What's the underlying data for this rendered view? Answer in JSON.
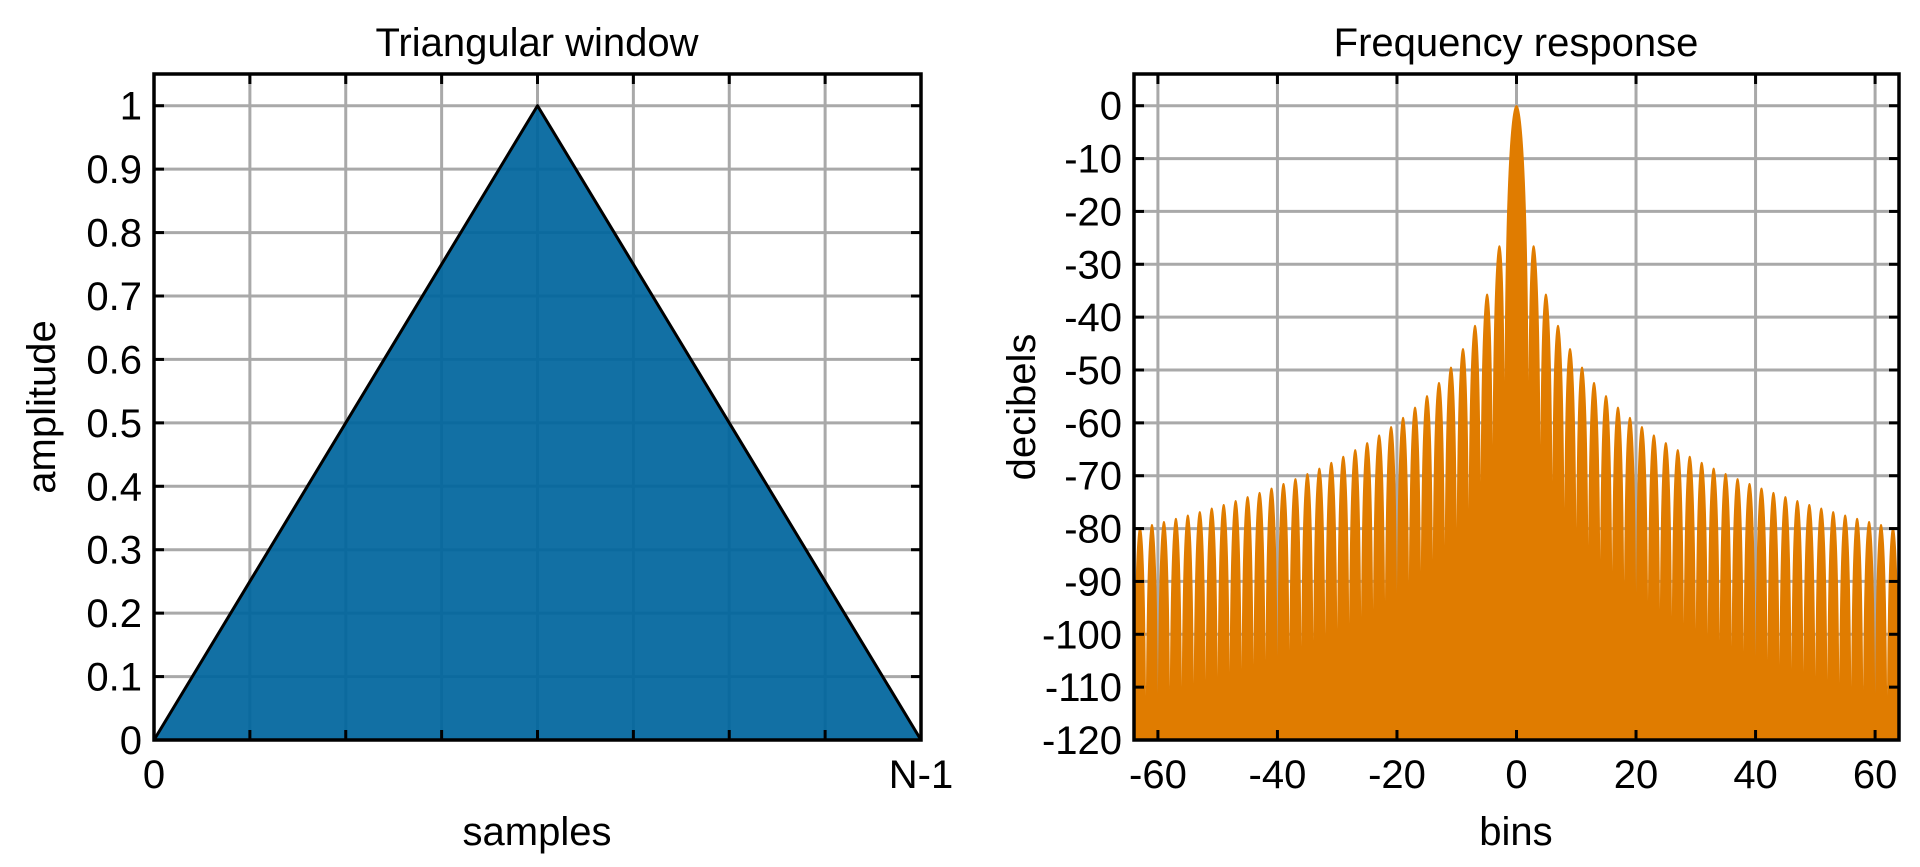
{
  "chart_data": [
    {
      "type": "area",
      "title": "Triangular window",
      "xlabel": "samples",
      "ylabel": "amplitude",
      "x_tick_labels": [
        "0",
        "N-1"
      ],
      "y_ticks": [
        0,
        0.1,
        0.2,
        0.3,
        0.4,
        0.5,
        0.6,
        0.7,
        0.8,
        0.9,
        1
      ],
      "y_tick_labels": [
        "0",
        "0.1",
        "0.2",
        "0.3",
        "0.4",
        "0.5",
        "0.6",
        "0.7",
        "0.8",
        "0.9",
        "1"
      ],
      "xlim": [
        0,
        1
      ],
      "ylim": [
        0,
        1.05
      ],
      "grid": true,
      "series": [
        {
          "x": [
            0,
            0.5,
            1
          ],
          "y": [
            0,
            1,
            0
          ],
          "color": "#00659d"
        }
      ]
    },
    {
      "type": "area",
      "title": "Frequency response",
      "xlabel": "bins",
      "ylabel": "decibels",
      "x_ticks": [
        -60,
        -40,
        -20,
        0,
        20,
        40,
        60
      ],
      "x_tick_labels": [
        "-60",
        "-40",
        "-20",
        "0",
        "20",
        "40",
        "60"
      ],
      "y_ticks": [
        0,
        -10,
        -20,
        -30,
        -40,
        -50,
        -60,
        -70,
        -80,
        -90,
        -100,
        -110,
        -120
      ],
      "y_tick_labels": [
        "0",
        "-10",
        "-20",
        "-30",
        "-40",
        "-50",
        "-60",
        "-70",
        "-80",
        "-90",
        "-100",
        "-110",
        "-120"
      ],
      "xlim": [
        -64,
        64
      ],
      "ylim": [
        -120,
        6
      ],
      "grid": true,
      "series": [
        {
          "function": "20*log10(|sinc(x/2)|^2)",
          "color": "#e07c00"
        }
      ]
    }
  ]
}
